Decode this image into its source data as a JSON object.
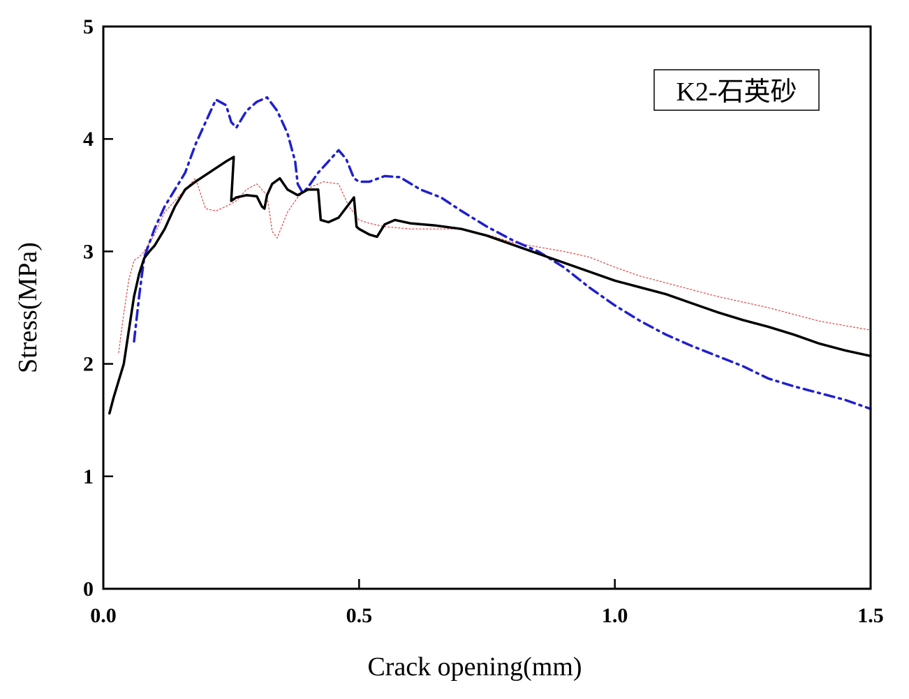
{
  "chart_data": {
    "type": "line",
    "xlabel": "Crack opening(mm)",
    "ylabel": "Stress(MPa)",
    "xlim": [
      0,
      1.5
    ],
    "ylim": [
      0,
      5
    ],
    "xticks": [
      0.0,
      0.5,
      1.0,
      1.5
    ],
    "xtick_labels": [
      "0.0",
      "0.5",
      "1.0",
      "1.5"
    ],
    "yticks": [
      0,
      1,
      2,
      3,
      4,
      5
    ],
    "ytick_labels": [
      "0",
      "1",
      "2",
      "3",
      "4",
      "5"
    ],
    "grid": false,
    "annotation": "K2-石英砂",
    "series": [
      {
        "color": "#000000",
        "style": "solid",
        "x": [
          0.012,
          0.02,
          0.03,
          0.04,
          0.05,
          0.06,
          0.07,
          0.08,
          0.09,
          0.1,
          0.12,
          0.14,
          0.16,
          0.18,
          0.2,
          0.22,
          0.24,
          0.255,
          0.25,
          0.26,
          0.28,
          0.3,
          0.31,
          0.315,
          0.32,
          0.33,
          0.345,
          0.36,
          0.38,
          0.4,
          0.42,
          0.425,
          0.44,
          0.46,
          0.48,
          0.49,
          0.495,
          0.5,
          0.52,
          0.535,
          0.55,
          0.57,
          0.6,
          0.65,
          0.7,
          0.75,
          0.8,
          0.85,
          0.9,
          0.95,
          1.0,
          1.05,
          1.1,
          1.15,
          1.2,
          1.25,
          1.3,
          1.35,
          1.4,
          1.45,
          1.5
        ],
        "y": [
          1.56,
          1.7,
          1.85,
          2.0,
          2.3,
          2.6,
          2.8,
          2.94,
          3.0,
          3.05,
          3.2,
          3.4,
          3.55,
          3.62,
          3.68,
          3.74,
          3.8,
          3.84,
          3.45,
          3.48,
          3.5,
          3.49,
          3.4,
          3.38,
          3.5,
          3.6,
          3.65,
          3.55,
          3.5,
          3.55,
          3.55,
          3.28,
          3.26,
          3.3,
          3.42,
          3.48,
          3.22,
          3.2,
          3.15,
          3.13,
          3.24,
          3.28,
          3.25,
          3.23,
          3.2,
          3.14,
          3.06,
          2.98,
          2.9,
          2.82,
          2.74,
          2.68,
          2.62,
          2.54,
          2.46,
          2.39,
          2.33,
          2.26,
          2.18,
          2.12,
          2.07
        ]
      },
      {
        "color": "#1f1fcf",
        "style": "dash-dot",
        "x": [
          0.06,
          0.07,
          0.08,
          0.1,
          0.12,
          0.14,
          0.16,
          0.18,
          0.2,
          0.22,
          0.24,
          0.25,
          0.26,
          0.28,
          0.3,
          0.32,
          0.34,
          0.36,
          0.375,
          0.38,
          0.39,
          0.4,
          0.42,
          0.44,
          0.46,
          0.475,
          0.49,
          0.5,
          0.52,
          0.55,
          0.58,
          0.62,
          0.66,
          0.7,
          0.75,
          0.8,
          0.85,
          0.9,
          0.95,
          1.0,
          1.05,
          1.1,
          1.15,
          1.2,
          1.25,
          1.3,
          1.35,
          1.4,
          1.45,
          1.5
        ],
        "y": [
          2.2,
          2.6,
          2.95,
          3.2,
          3.4,
          3.55,
          3.7,
          3.95,
          4.15,
          4.35,
          4.3,
          4.15,
          4.1,
          4.25,
          4.33,
          4.37,
          4.25,
          4.05,
          3.8,
          3.6,
          3.52,
          3.57,
          3.7,
          3.8,
          3.9,
          3.82,
          3.65,
          3.62,
          3.62,
          3.67,
          3.66,
          3.55,
          3.48,
          3.36,
          3.22,
          3.1,
          3.0,
          2.86,
          2.68,
          2.52,
          2.38,
          2.26,
          2.16,
          2.07,
          1.98,
          1.87,
          1.8,
          1.74,
          1.68,
          1.6
        ]
      },
      {
        "color": "#e04040",
        "style": "dotted",
        "x": [
          0.03,
          0.04,
          0.05,
          0.06,
          0.07,
          0.08,
          0.1,
          0.12,
          0.14,
          0.16,
          0.18,
          0.2,
          0.22,
          0.24,
          0.26,
          0.28,
          0.3,
          0.32,
          0.33,
          0.34,
          0.36,
          0.38,
          0.4,
          0.43,
          0.46,
          0.48,
          0.5,
          0.52,
          0.55,
          0.6,
          0.65,
          0.7,
          0.75,
          0.8,
          0.85,
          0.9,
          0.95,
          1.0,
          1.05,
          1.1,
          1.15,
          1.2,
          1.25,
          1.3,
          1.35,
          1.4,
          1.45,
          1.5
        ],
        "y": [
          2.1,
          2.45,
          2.75,
          2.92,
          2.95,
          3.0,
          3.15,
          3.35,
          3.45,
          3.55,
          3.65,
          3.38,
          3.36,
          3.4,
          3.45,
          3.55,
          3.6,
          3.5,
          3.18,
          3.12,
          3.35,
          3.48,
          3.56,
          3.62,
          3.6,
          3.4,
          3.28,
          3.25,
          3.22,
          3.2,
          3.2,
          3.2,
          3.15,
          3.08,
          3.04,
          3.0,
          2.95,
          2.86,
          2.78,
          2.72,
          2.66,
          2.6,
          2.55,
          2.5,
          2.44,
          2.38,
          2.34,
          2.3
        ]
      }
    ]
  }
}
